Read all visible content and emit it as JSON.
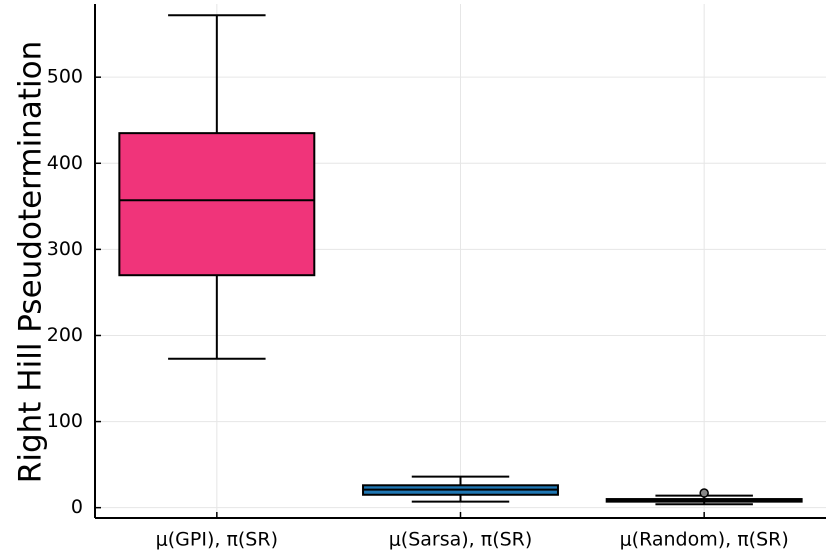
{
  "chart_data": {
    "type": "box",
    "title": "",
    "xlabel": "",
    "ylabel": "Right Hill Pseudotermination",
    "ylim": [
      -12,
      585
    ],
    "yticks": [
      0,
      100,
      200,
      300,
      400,
      500
    ],
    "grid": true,
    "legend": "none",
    "categories": [
      "μ(GPI), π(SR)",
      "μ(Sarsa), π(SR)",
      "μ(Random), π(SR)"
    ],
    "boxes": [
      {
        "category": "μ(GPI), π(SR)",
        "min": 173,
        "q1": 270,
        "median": 357,
        "q3": 435,
        "max": 572,
        "outliers": [],
        "color": "#F0347A"
      },
      {
        "category": "μ(Sarsa), π(SR)",
        "min": 7,
        "q1": 15,
        "median": 21,
        "q3": 26,
        "max": 36,
        "outliers": [],
        "color": "#1F77B4"
      },
      {
        "category": "μ(Random), π(SR)",
        "min": 4,
        "q1": 7,
        "median": 9,
        "q3": 10,
        "max": 14,
        "outliers": [
          17
        ],
        "color": "#333333"
      }
    ]
  }
}
